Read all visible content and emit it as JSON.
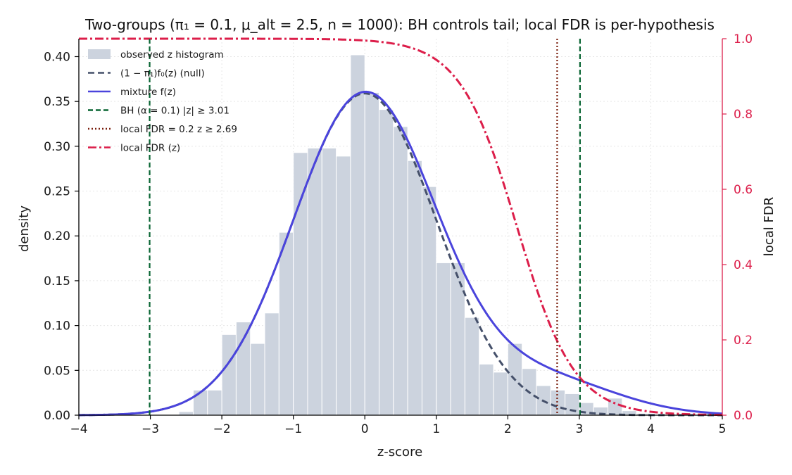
{
  "chart_data": {
    "type": "bar",
    "title": "Two-groups (π₁ = 0.1, μ_alt = 2.5, n = 1000): BH controls tail; local FDR is per-hypothesis",
    "xlabel": "z-score",
    "ylabel": "density",
    "y2label": "local FDR",
    "xlim": [
      -4,
      5
    ],
    "ylim": [
      0,
      0.42
    ],
    "y2lim": [
      0,
      1.0
    ],
    "x_ticks": [
      -4,
      -3,
      -2,
      -1,
      0,
      1,
      2,
      3,
      4,
      5
    ],
    "x_tick_labels": [
      "−4",
      "−3",
      "−2",
      "−1",
      "0",
      "1",
      "2",
      "3",
      "4",
      "5"
    ],
    "y_ticks": [
      0.0,
      0.05,
      0.1,
      0.15,
      0.2,
      0.25,
      0.3,
      0.35,
      0.4
    ],
    "y_tick_labels": [
      "0.00",
      "0.05",
      "0.10",
      "0.15",
      "0.20",
      "0.25",
      "0.30",
      "0.35",
      "0.40"
    ],
    "y2_ticks": [
      0.0,
      0.2,
      0.4,
      0.6,
      0.8,
      1.0
    ],
    "y2_tick_labels": [
      "0.0",
      "0.2",
      "0.4",
      "0.6",
      "0.8",
      "1.0"
    ],
    "grid": true,
    "legend_position": "top-left",
    "params": {
      "pi1": 0.1,
      "mu_alt": 2.5,
      "n": 1000,
      "alpha": 0.1
    },
    "histogram": {
      "name": "observed z histogram",
      "bin_edges": [
        -2.6,
        -2.4,
        -2.2,
        -2.0,
        -1.8,
        -1.6,
        -1.4,
        -1.2,
        -1.0,
        -0.8,
        -0.6,
        -0.4,
        -0.2,
        0.0,
        0.2,
        0.4,
        0.6,
        0.8,
        1.0,
        1.2,
        1.4,
        1.6,
        1.8,
        2.0,
        2.2,
        2.4,
        2.6,
        2.8,
        3.0,
        3.2,
        3.4,
        3.6,
        3.8,
        4.0,
        4.2
      ],
      "values": [
        0.004,
        0.028,
        0.028,
        0.09,
        0.104,
        0.08,
        0.114,
        0.204,
        0.293,
        0.298,
        0.298,
        0.289,
        0.402,
        0.36,
        0.341,
        0.322,
        0.284,
        0.255,
        0.17,
        0.17,
        0.109,
        0.057,
        0.048,
        0.08,
        0.052,
        0.033,
        0.028,
        0.024,
        0.014,
        0.009,
        0.019,
        0.005,
        0.002,
        0.0
      ]
    },
    "series": [
      {
        "name": "(1 − π₁)f₀(z)  (null)",
        "kind": "null_density"
      },
      {
        "name": "mixture f(z)",
        "kind": "mixture_density"
      },
      {
        "name": "local FDR (z)",
        "kind": "local_fdr",
        "axis": "right"
      }
    ],
    "vertical_lines": [
      {
        "name": "BH (α = 0.1)  |z| ≥ 3.01",
        "x": [
          -3.01,
          3.01
        ]
      },
      {
        "name": "local FDR = 0.2  z ≥ 2.69",
        "x": [
          2.69
        ]
      }
    ],
    "colors": {
      "histogram": "#ccd3de",
      "null": "#45506a",
      "mixture": "#4a44dc",
      "bh": "#0a6634",
      "lfdr_threshold": "#7a1f0e",
      "lfdr_curve": "#dc1e4a",
      "right_axis": "#dc1e4a",
      "grid": "#e6e6e6"
    }
  },
  "legend": {
    "items": [
      {
        "key": "hist",
        "label": "observed z histogram"
      },
      {
        "key": "null",
        "label": "(1 − π₁)f₀(z)  (null)"
      },
      {
        "key": "mixture",
        "label": "mixture f(z)"
      },
      {
        "key": "bh",
        "label": "BH (α = 0.1)  |z| ≥ 3.01"
      },
      {
        "key": "lfdr_thr",
        "label": "local FDR  = 0.2  z ≥ 2.69"
      },
      {
        "key": "lfdr_curve",
        "label": "local FDR (z)"
      }
    ]
  }
}
